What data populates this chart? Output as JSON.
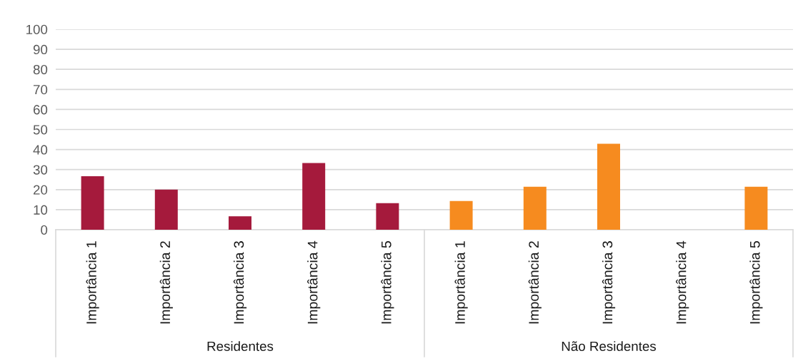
{
  "chart_data": {
    "type": "bar",
    "categories": [
      "Importância 1",
      "Importância 2",
      "Importância 3",
      "Importância 4",
      "Importância 5",
      "Importância 1",
      "Importância 2",
      "Importância 3",
      "Importância 4",
      "Importância 5"
    ],
    "values": [
      26.7,
      20,
      6.7,
      33.3,
      13.3,
      14.3,
      21.4,
      42.9,
      0,
      21.4
    ],
    "colors": [
      "#a51a3c",
      "#a51a3c",
      "#a51a3c",
      "#a51a3c",
      "#a51a3c",
      "#f68b1f",
      "#f68b1f",
      "#f68b1f",
      "#f68b1f",
      "#f68b1f"
    ],
    "annotations": [
      "Residentes",
      "Não Residentes"
    ],
    "ylim": [
      0,
      100
    ],
    "yticks": [
      0,
      10,
      20,
      30,
      40,
      50,
      60,
      70,
      80,
      90,
      100
    ],
    "grid": "y"
  }
}
